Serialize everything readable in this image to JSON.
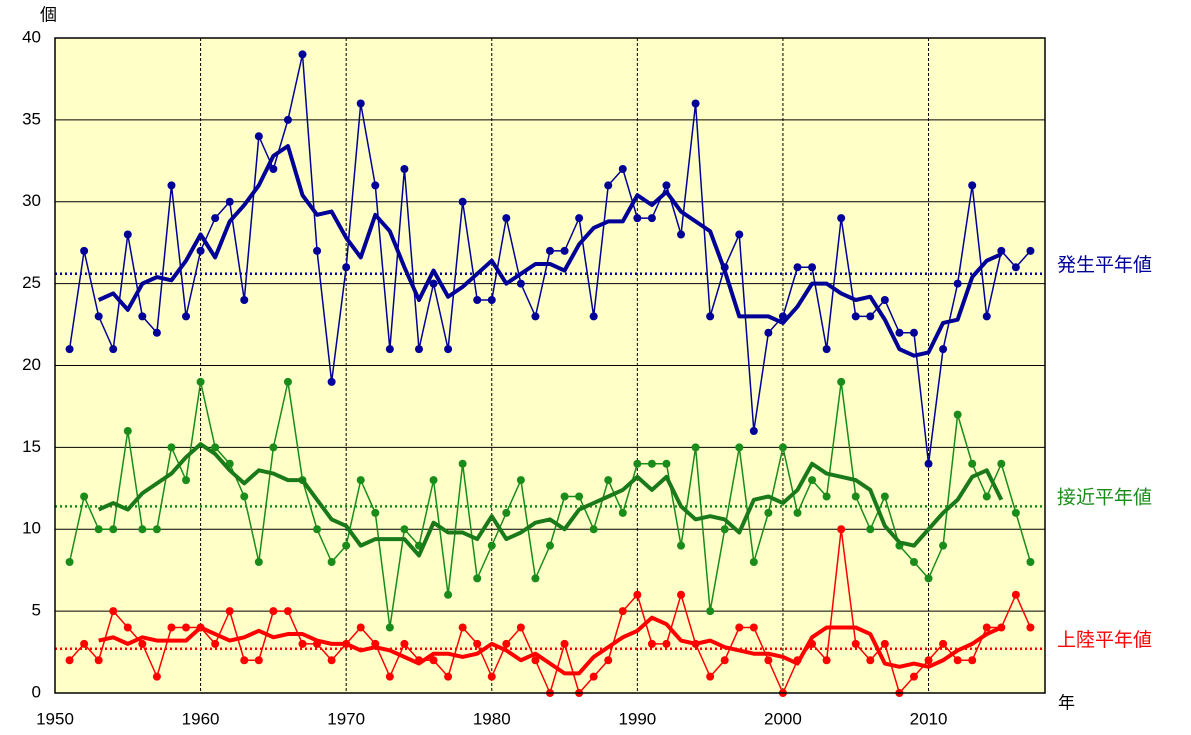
{
  "chart_data": {
    "type": "line",
    "y_unit": "個",
    "x_unit": "年",
    "x": [
      1951,
      1952,
      1953,
      1954,
      1955,
      1956,
      1957,
      1958,
      1959,
      1960,
      1961,
      1962,
      1963,
      1964,
      1965,
      1966,
      1967,
      1968,
      1969,
      1970,
      1971,
      1972,
      1973,
      1974,
      1975,
      1976,
      1977,
      1978,
      1979,
      1980,
      1981,
      1982,
      1983,
      1984,
      1985,
      1986,
      1987,
      1988,
      1989,
      1990,
      1991,
      1992,
      1993,
      1994,
      1995,
      1996,
      1997,
      1998,
      1999,
      2000,
      2001,
      2002,
      2003,
      2004,
      2005,
      2006,
      2007,
      2008,
      2009,
      2010,
      2011,
      2012,
      2013,
      2014,
      2015,
      2016,
      2017
    ],
    "series": [
      {
        "color": "#000099",
        "markers": true,
        "line_width": 1.5,
        "values": [
          21,
          27,
          23,
          21,
          28,
          23,
          22,
          31,
          23,
          27,
          29,
          30,
          24,
          34,
          32,
          35,
          39,
          27,
          19,
          26,
          36,
          31,
          21,
          32,
          21,
          25,
          21,
          30,
          24,
          24,
          29,
          25,
          23,
          27,
          27,
          29,
          23,
          31,
          32,
          29,
          29,
          31,
          28,
          36,
          23,
          26,
          28,
          16,
          22,
          23,
          26,
          26,
          21,
          29,
          23,
          23,
          24,
          22,
          22,
          14,
          21,
          25,
          31,
          23,
          27,
          26,
          27
        ]
      },
      {
        "color": "#000099",
        "markers": false,
        "line_width": 4,
        "values": [
          null,
          null,
          24.0,
          24.4,
          23.4,
          25.0,
          25.4,
          25.2,
          26.4,
          28.0,
          26.6,
          28.8,
          29.8,
          31.0,
          32.8,
          33.4,
          30.4,
          29.2,
          29.4,
          27.8,
          26.6,
          29.2,
          28.2,
          26.0,
          24.0,
          25.8,
          24.2,
          24.8,
          25.6,
          26.4,
          25.0,
          25.6,
          26.2,
          26.2,
          25.8,
          27.4,
          28.4,
          28.8,
          28.8,
          30.4,
          29.8,
          30.6,
          29.4,
          28.8,
          28.2,
          25.8,
          23.0,
          23.0,
          23.0,
          22.6,
          23.6,
          25.0,
          25.0,
          24.4,
          24.0,
          24.2,
          22.8,
          21.0,
          20.6,
          20.8,
          22.6,
          22.8,
          25.4,
          26.4,
          26.8,
          null,
          null
        ]
      },
      {
        "color": "#1a8c1a",
        "markers": true,
        "line_width": 1.5,
        "values": [
          8,
          12,
          10,
          10,
          16,
          10,
          10,
          15,
          13,
          19,
          15,
          14,
          12,
          8,
          15,
          19,
          13,
          10,
          8,
          9,
          13,
          11,
          4,
          10,
          9,
          13,
          6,
          14,
          7,
          9,
          11,
          13,
          7,
          9,
          12,
          12,
          10,
          13,
          11,
          14,
          14,
          14,
          9,
          15,
          5,
          10,
          15,
          8,
          11,
          15,
          11,
          13,
          12,
          19,
          12,
          10,
          12,
          9,
          8,
          7,
          9,
          17,
          14,
          12,
          14,
          11,
          8
        ]
      },
      {
        "color": "#1a7a1a",
        "markers": false,
        "line_width": 4,
        "values": [
          null,
          null,
          11.2,
          11.6,
          11.2,
          12.2,
          12.8,
          13.4,
          14.4,
          15.2,
          14.6,
          13.6,
          12.8,
          13.6,
          13.4,
          13.0,
          13.0,
          11.8,
          10.6,
          10.2,
          9.0,
          9.4,
          9.4,
          9.4,
          8.4,
          10.4,
          9.8,
          9.8,
          9.4,
          10.8,
          9.4,
          9.8,
          10.4,
          10.6,
          10.0,
          11.2,
          11.6,
          12.0,
          12.4,
          13.2,
          12.4,
          13.2,
          11.4,
          10.6,
          10.8,
          10.6,
          9.8,
          11.8,
          12.0,
          11.6,
          12.4,
          14.0,
          13.4,
          13.2,
          13.0,
          12.4,
          10.2,
          9.2,
          9.0,
          10.0,
          11.0,
          11.8,
          13.2,
          13.6,
          11.8,
          null,
          null
        ]
      },
      {
        "color": "#ff0000",
        "markers": true,
        "line_width": 1.5,
        "values": [
          2,
          3,
          2,
          5,
          4,
          3,
          1,
          4,
          4,
          4,
          3,
          5,
          2,
          2,
          5,
          5,
          3,
          3,
          2,
          3,
          4,
          3,
          1,
          3,
          2,
          2,
          1,
          4,
          3,
          1,
          3,
          4,
          2,
          0,
          3,
          0,
          1,
          2,
          5,
          6,
          3,
          3,
          6,
          3,
          1,
          2,
          4,
          4,
          2,
          0,
          2,
          3,
          2,
          10,
          3,
          2,
          3,
          0,
          1,
          2,
          3,
          2,
          2,
          4,
          4,
          6,
          4
        ]
      },
      {
        "color": "#ff0000",
        "markers": false,
        "line_width": 4,
        "values": [
          null,
          null,
          3.2,
          3.4,
          3.0,
          3.4,
          3.2,
          3.2,
          3.2,
          4.0,
          3.6,
          3.2,
          3.4,
          3.8,
          3.4,
          3.6,
          3.6,
          3.2,
          3.0,
          3.0,
          2.6,
          2.8,
          2.6,
          2.2,
          1.8,
          2.4,
          2.4,
          2.2,
          2.4,
          3.0,
          2.6,
          2.0,
          2.4,
          1.8,
          1.2,
          1.2,
          2.2,
          2.8,
          3.4,
          3.8,
          4.6,
          4.2,
          3.2,
          3.0,
          3.2,
          2.8,
          2.6,
          2.4,
          2.4,
          2.2,
          1.8,
          3.4,
          4.0,
          4.0,
          4.0,
          3.6,
          1.8,
          1.6,
          1.8,
          1.6,
          2.0,
          2.6,
          3.0,
          3.6,
          4.0,
          null,
          null
        ]
      }
    ],
    "reference_lines": [
      {
        "label": "発生平年値",
        "value": 25.6,
        "color": "#000099"
      },
      {
        "label": "接近平年値",
        "value": 11.4,
        "color": "#1a8c1a"
      },
      {
        "label": "上陸平年値",
        "value": 2.7,
        "color": "#ff0000"
      }
    ],
    "xlim": [
      1950,
      2018
    ],
    "xticks": [
      1950,
      1960,
      1970,
      1980,
      1990,
      2000,
      2010
    ],
    "ylim": [
      0,
      40
    ],
    "yticks": [
      0,
      5,
      10,
      15,
      20,
      25,
      30,
      35,
      40
    ],
    "grid": true,
    "background": "#ffffc8"
  }
}
